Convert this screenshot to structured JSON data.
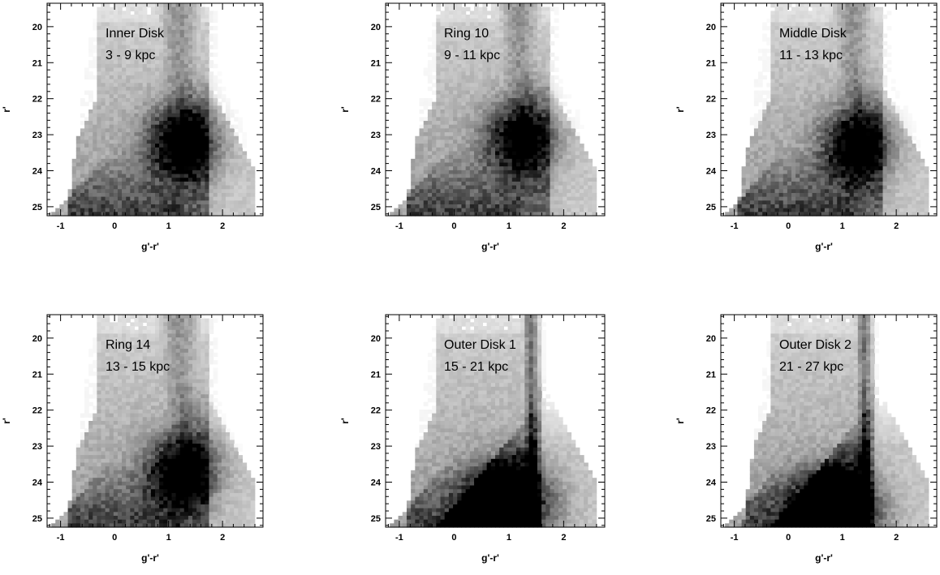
{
  "chart_data": [
    {
      "type": "heatmap",
      "title": "Inner Disk",
      "subtitle": "3 - 9 kpc",
      "xlabel": "g'-r'",
      "ylabel": "r'",
      "xlim": [
        -1.25,
        2.75
      ],
      "ylim": [
        25.25,
        19.35
      ],
      "xticks": [
        -1,
        0,
        1,
        2
      ],
      "xtick_labels": [
        "-1",
        "0",
        "1",
        "2"
      ],
      "yticks": [
        20,
        21,
        22,
        23,
        24,
        25
      ],
      "ytick_labels": [
        "20",
        "21",
        "22",
        "23",
        "24",
        "25"
      ],
      "density_features": {
        "peak_color": 1.25,
        "peak_mag": 23.2,
        "peak_intensity": 1.0,
        "plume_center_color": 1.2,
        "plume_half_width": 0.42,
        "blue_edge_color": -0.35,
        "outer_disk": false
      }
    },
    {
      "type": "heatmap",
      "title": "Ring 10",
      "subtitle": "9 - 11 kpc",
      "xlabel": "g'-r'",
      "ylabel": "r'",
      "xlim": [
        -1.25,
        2.75
      ],
      "ylim": [
        25.25,
        19.35
      ],
      "xticks": [
        -1,
        0,
        1,
        2
      ],
      "xtick_labels": [
        "-1",
        "0",
        "1",
        "2"
      ],
      "yticks": [
        20,
        21,
        22,
        23,
        24,
        25
      ],
      "ytick_labels": [
        "20",
        "21",
        "22",
        "23",
        "24",
        "25"
      ],
      "density_features": {
        "peak_color": 1.2,
        "peak_mag": 23.1,
        "peak_intensity": 0.85,
        "plume_center_color": 1.2,
        "plume_half_width": 0.42,
        "blue_edge_color": -0.35,
        "outer_disk": false
      }
    },
    {
      "type": "heatmap",
      "title": "Middle Disk",
      "subtitle": "11 - 13 kpc",
      "xlabel": "g'-r'",
      "ylabel": "r'",
      "xlim": [
        -1.25,
        2.75
      ],
      "ylim": [
        25.25,
        19.35
      ],
      "xticks": [
        -1,
        0,
        1,
        2
      ],
      "xtick_labels": [
        "-1",
        "0",
        "1",
        "2"
      ],
      "yticks": [
        20,
        21,
        22,
        23,
        24,
        25
      ],
      "ytick_labels": [
        "20",
        "21",
        "22",
        "23",
        "24",
        "25"
      ],
      "density_features": {
        "peak_color": 1.25,
        "peak_mag": 23.3,
        "peak_intensity": 0.9,
        "plume_center_color": 1.2,
        "plume_half_width": 0.42,
        "blue_edge_color": -0.4,
        "outer_disk": false
      }
    },
    {
      "type": "heatmap",
      "title": "Ring 14",
      "subtitle": "13 - 15 kpc",
      "xlabel": "g'-r'",
      "ylabel": "r'",
      "xlim": [
        -1.25,
        2.75
      ],
      "ylim": [
        25.25,
        19.35
      ],
      "xticks": [
        -1,
        0,
        1,
        2
      ],
      "xtick_labels": [
        "-1",
        "0",
        "1",
        "2"
      ],
      "yticks": [
        20,
        21,
        22,
        23,
        24,
        25
      ],
      "ytick_labels": [
        "20",
        "21",
        "22",
        "23",
        "24",
        "25"
      ],
      "density_features": {
        "peak_color": 1.25,
        "peak_mag": 23.7,
        "peak_intensity": 0.95,
        "plume_center_color": 1.2,
        "plume_half_width": 0.42,
        "blue_edge_color": -0.35,
        "outer_disk": false
      }
    },
    {
      "type": "heatmap",
      "title": "Outer Disk 1",
      "subtitle": "15 - 21 kpc",
      "xlabel": "g'-r'",
      "ylabel": "r'",
      "xlim": [
        -1.25,
        2.75
      ],
      "ylim": [
        25.25,
        19.35
      ],
      "xticks": [
        -1,
        0,
        1,
        2
      ],
      "xtick_labels": [
        "-1",
        "0",
        "1",
        "2"
      ],
      "yticks": [
        20,
        21,
        22,
        23,
        24,
        25
      ],
      "ytick_labels": [
        "20",
        "21",
        "22",
        "23",
        "24",
        "25"
      ],
      "density_features": {
        "peak_color": 1.0,
        "peak_mag": 24.6,
        "peak_intensity": 1.1,
        "plume_center_color": 1.4,
        "plume_half_width": 0.14,
        "blue_edge_color": -0.35,
        "outer_disk": true
      }
    },
    {
      "type": "heatmap",
      "title": "Outer Disk 2",
      "subtitle": "21 - 27 kpc",
      "xlabel": "g'-r'",
      "ylabel": "r'",
      "xlim": [
        -1.25,
        2.75
      ],
      "ylim": [
        25.25,
        19.35
      ],
      "xticks": [
        -1,
        0,
        1,
        2
      ],
      "xtick_labels": [
        "-1",
        "0",
        "1",
        "2"
      ],
      "yticks": [
        20,
        21,
        22,
        23,
        24,
        25
      ],
      "ytick_labels": [
        "20",
        "21",
        "22",
        "23",
        "24",
        "25"
      ],
      "density_features": {
        "peak_color": 0.9,
        "peak_mag": 24.8,
        "peak_intensity": 1.1,
        "plume_center_color": 1.4,
        "plume_half_width": 0.14,
        "blue_edge_color": -0.3,
        "outer_disk": true
      }
    }
  ]
}
